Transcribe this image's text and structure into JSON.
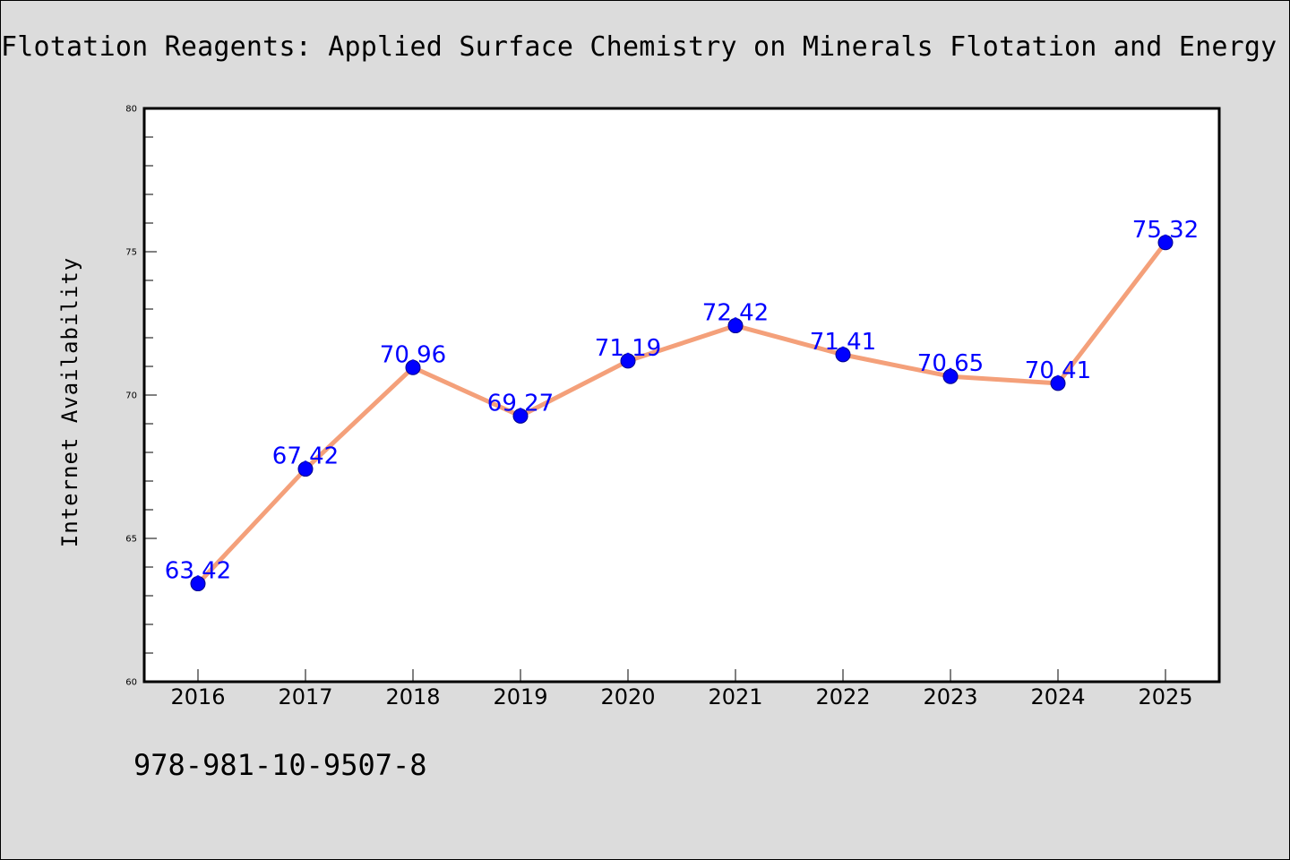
{
  "chart_data": {
    "type": "line",
    "title": "Flotation Reagents: Applied Surface Chemistry on Minerals Flotation and Energy R",
    "xlabel": "",
    "ylabel": "Internet Availability",
    "categories": [
      "2016",
      "2017",
      "2018",
      "2019",
      "2020",
      "2021",
      "2022",
      "2023",
      "2024",
      "2025"
    ],
    "series": [
      {
        "values": [
          63.42,
          67.42,
          70.96,
          69.27,
          71.19,
          72.42,
          71.41,
          70.65,
          70.41,
          75.32
        ],
        "data_labels": [
          "63.42",
          "67.42",
          "70.96",
          "69.27",
          "71.19",
          "72.42",
          "71.41",
          "70.65",
          "70.41",
          "75.32"
        ]
      }
    ],
    "ylim": [
      60,
      80
    ],
    "yticks": [
      "60",
      "65",
      "70",
      "75",
      "80"
    ],
    "grid": false,
    "legend": "none",
    "colors": {
      "line": "#f4a07a",
      "marker": "#0000ff",
      "data_label": "#0000ff",
      "plot_background": "#ffffff",
      "figure_background": "#dcdcdc"
    }
  },
  "footer": {
    "code": "978-981-10-9507-8"
  }
}
